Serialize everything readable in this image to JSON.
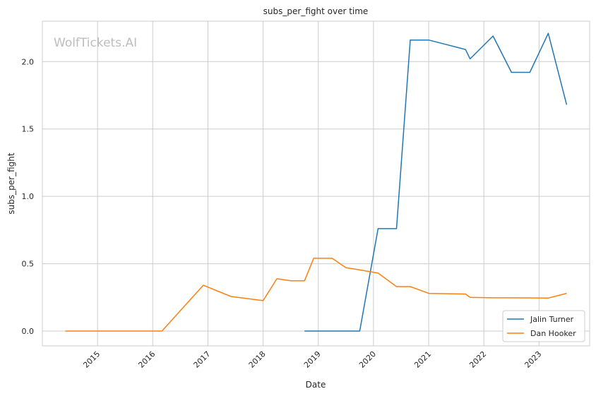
{
  "chart_data": {
    "type": "line",
    "title": "subs_per_fight over time",
    "xlabel": "Date",
    "ylabel": "subs_per_fight",
    "watermark": "WolfTickets.AI",
    "xlim": [
      "2014-01",
      "2023-12"
    ],
    "ylim": [
      -0.11,
      2.3
    ],
    "x_ticks": [
      "2015",
      "2016",
      "2017",
      "2018",
      "2019",
      "2020",
      "2021",
      "2022",
      "2023"
    ],
    "y_ticks": [
      "0.0",
      "0.5",
      "1.0",
      "1.5",
      "2.0"
    ],
    "grid": true,
    "legend_position": "lower-right",
    "series": [
      {
        "name": "Jalin Turner",
        "color": "#1f77b4",
        "x": [
          "2018-10",
          "2019-10",
          "2020-02",
          "2020-06",
          "2020-09",
          "2021-01",
          "2021-09",
          "2021-10",
          "2022-03",
          "2022-07",
          "2022-11",
          "2023-03",
          "2023-07"
        ],
        "y": [
          0,
          0,
          0.76,
          0.76,
          2.16,
          2.16,
          2.09,
          2.02,
          2.19,
          1.92,
          1.92,
          2.21,
          1.68
        ]
      },
      {
        "name": "Dan Hooker",
        "color": "#ff7f0e",
        "x": [
          "2014-06",
          "2016-03",
          "2016-12",
          "2017-06",
          "2018-01",
          "2018-04",
          "2018-07",
          "2018-10",
          "2018-12",
          "2019-04",
          "2019-07",
          "2019-09",
          "2020-02",
          "2020-06",
          "2020-09",
          "2021-01",
          "2021-09",
          "2021-10",
          "2022-03",
          "2022-07",
          "2023-03",
          "2023-07"
        ],
        "y": [
          0,
          0,
          0.34,
          0.257,
          0.226,
          0.388,
          0.373,
          0.373,
          0.54,
          0.54,
          0.47,
          0.46,
          0.43,
          0.33,
          0.33,
          0.28,
          0.275,
          0.25,
          0.247,
          0.247,
          0.245,
          0.28
        ]
      }
    ]
  }
}
